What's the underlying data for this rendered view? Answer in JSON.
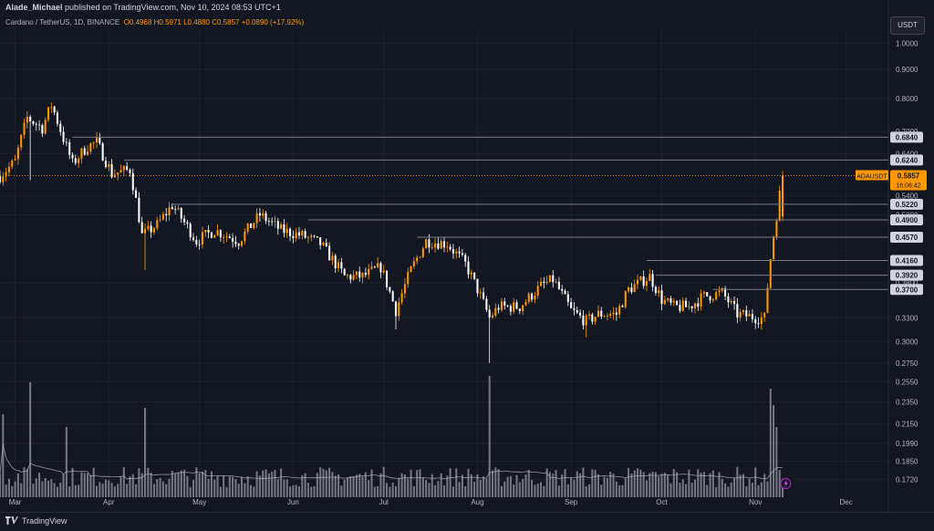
{
  "header": {
    "publisher": "Alade_Michael",
    "published_text": "published on TradingView.com, Nov 10, 2024 08:53 UTC+1"
  },
  "symbol": {
    "name": "Cardano / TetherUS, 1D, BINANCE",
    "ohlc": "O0.4968  H0.5971  L0.4880  C0.5857  +0.0890 (+17.92%)"
  },
  "currency_button": "USDT",
  "footer": {
    "brand": "TradingView"
  },
  "colors": {
    "background": "#131722",
    "up": "#ff9800",
    "down": "#ffffff",
    "level_line": "#787b86",
    "price_label": "#ff9800",
    "level_label_bg": "#d1d4dc",
    "volume": "#9598a1",
    "volume_ma": "#b2b5be"
  },
  "chart_data": {
    "type": "candlestick",
    "symbol": "ADAUSDT",
    "y_scale": "log",
    "ylim": [
      0.16,
      1.05
    ],
    "y_ticks": [
      1.0,
      0.9,
      0.8,
      0.7,
      0.64,
      0.54,
      0.5,
      0.38,
      0.33,
      0.3,
      0.275,
      0.255,
      0.235,
      0.215,
      0.199,
      0.185,
      0.172
    ],
    "y_tick_labels": [
      "1.0000",
      "0.9000",
      "0.8000",
      "0.7000",
      "0.6400",
      "0.5400",
      "0.5000",
      "0.3800",
      "0.3300",
      "0.3000",
      "0.2750",
      "0.2550",
      "0.2350",
      "0.2150",
      "0.1990",
      "0.1850",
      "0.1720"
    ],
    "x_labels": [
      "Mar",
      "Apr",
      "May",
      "Jun",
      "Jul",
      "Aug",
      "Sep",
      "Oct",
      "Nov",
      "Dec"
    ],
    "x_label_dates": [
      "2024-03-01",
      "2024-04-01",
      "2024-05-01",
      "2024-06-01",
      "2024-07-01",
      "2024-08-01",
      "2024-09-01",
      "2024-10-01",
      "2024-11-01",
      "2024-12-01"
    ],
    "date_range": [
      "2024-02-25",
      "2024-12-15"
    ],
    "key_points": [
      [
        "2024-02-25",
        0.585
      ],
      [
        "2024-03-01",
        0.62
      ],
      [
        "2024-03-05",
        0.74
      ],
      [
        "2024-03-10",
        0.71
      ],
      [
        "2024-03-13",
        0.78
      ],
      [
        "2024-03-17",
        0.68
      ],
      [
        "2024-03-20",
        0.615
      ],
      [
        "2024-03-25",
        0.66
      ],
      [
        "2024-03-28",
        0.67
      ],
      [
        "2024-04-02",
        0.59
      ],
      [
        "2024-04-08",
        0.6
      ],
      [
        "2024-04-12",
        0.46
      ],
      [
        "2024-04-17",
        0.48
      ],
      [
        "2024-04-22",
        0.52
      ],
      [
        "2024-04-30",
        0.45
      ],
      [
        "2024-05-06",
        0.47
      ],
      [
        "2024-05-14",
        0.45
      ],
      [
        "2024-05-21",
        0.5
      ],
      [
        "2024-05-28",
        0.47
      ],
      [
        "2024-06-04",
        0.46
      ],
      [
        "2024-06-10",
        0.445
      ],
      [
        "2024-06-18",
        0.39
      ],
      [
        "2024-06-24",
        0.39
      ],
      [
        "2024-06-30",
        0.405
      ],
      [
        "2024-07-05",
        0.34
      ],
      [
        "2024-07-10",
        0.4
      ],
      [
        "2024-07-15",
        0.45
      ],
      [
        "2024-07-22",
        0.445
      ],
      [
        "2024-07-28",
        0.41
      ],
      [
        "2024-08-05",
        0.33
      ],
      [
        "2024-08-08",
        0.345
      ],
      [
        "2024-08-15",
        0.345
      ],
      [
        "2024-08-22",
        0.375
      ],
      [
        "2024-08-26",
        0.385
      ],
      [
        "2024-09-01",
        0.34
      ],
      [
        "2024-09-06",
        0.325
      ],
      [
        "2024-09-10",
        0.335
      ],
      [
        "2024-09-16",
        0.335
      ],
      [
        "2024-09-20",
        0.37
      ],
      [
        "2024-09-27",
        0.39
      ],
      [
        "2024-10-01",
        0.355
      ],
      [
        "2024-10-05",
        0.345
      ],
      [
        "2024-10-10",
        0.345
      ],
      [
        "2024-10-15",
        0.36
      ],
      [
        "2024-10-21",
        0.365
      ],
      [
        "2024-10-26",
        0.335
      ],
      [
        "2024-11-02",
        0.33
      ],
      [
        "2024-11-04",
        0.33
      ],
      [
        "2024-11-06",
        0.42
      ],
      [
        "2024-11-08",
        0.5
      ],
      [
        "2024-11-10",
        0.5857
      ]
    ],
    "volume_spikes": [
      [
        "2024-02-26",
        0.65
      ],
      [
        "2024-03-06",
        0.9
      ],
      [
        "2024-03-18",
        0.55
      ],
      [
        "2024-04-13",
        0.7
      ],
      [
        "2024-08-05",
        0.95
      ],
      [
        "2024-11-06",
        0.85
      ],
      [
        "2024-11-07",
        0.72
      ],
      [
        "2024-11-08",
        0.55
      ]
    ],
    "levels": [
      {
        "price": 0.684,
        "label": "0.6840",
        "start": "2024-03-20"
      },
      {
        "price": 0.624,
        "label": "0.6240",
        "start": "2024-04-06"
      },
      {
        "price": 0.522,
        "label": "0.5220",
        "start": "2024-04-22"
      },
      {
        "price": 0.49,
        "label": "0.4900",
        "start": "2024-06-06"
      },
      {
        "price": 0.457,
        "label": "0.4570",
        "start": "2024-07-12"
      },
      {
        "price": 0.416,
        "label": "0.4160",
        "start": "2024-09-26"
      },
      {
        "price": 0.392,
        "label": "0.3920",
        "start": "2024-09-29"
      },
      {
        "price": 0.37,
        "label": "0.3700",
        "start": "2024-10-18"
      }
    ],
    "last_price": {
      "label": "ADAUSDT",
      "value": "0.5857",
      "countdown": "16:06:42",
      "price": 0.5857
    },
    "grid": true,
    "volume_pane": true
  }
}
